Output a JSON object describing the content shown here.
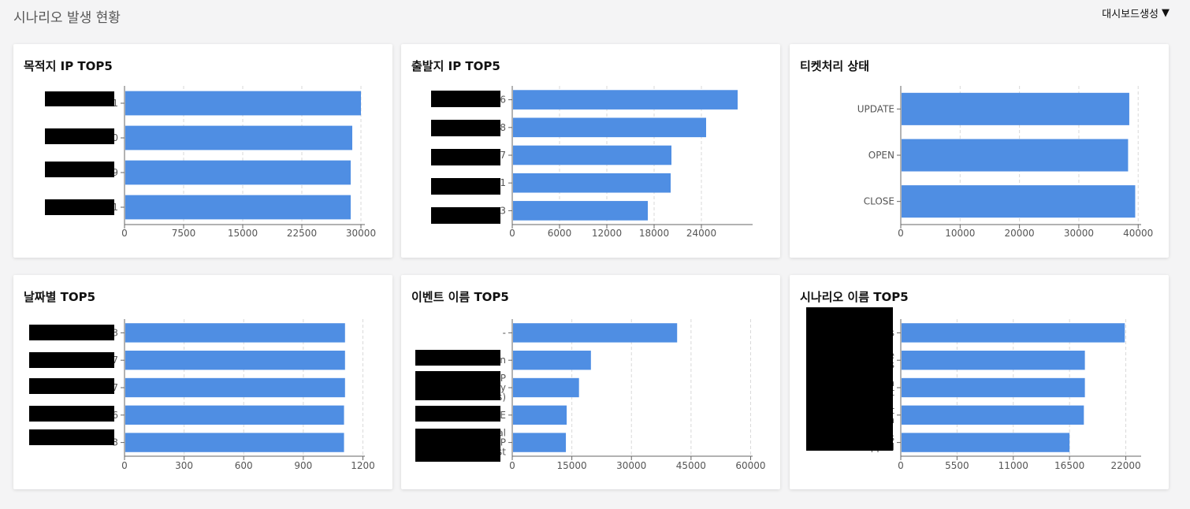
{
  "header": {
    "title": "시나리오 발생 현황",
    "dashboard_button": "대시보드생성",
    "dashboard_button_icon": "caret-down-icon"
  },
  "colors": {
    "bar": "#4f8ee3",
    "grid": "#d9d9d9",
    "axis": "#666666"
  },
  "chart_data": [
    {
      "id": "dest-ip",
      "title": "목적지 IP TOP5",
      "type": "bar",
      "orientation": "horizontal",
      "categories": [
        "1",
        "0",
        "9",
        "1"
      ],
      "values": [
        30000,
        28900,
        28700,
        28700
      ],
      "xlim": [
        0,
        30500
      ],
      "xticks": [
        0,
        7500,
        15000,
        22500,
        30000
      ],
      "grid": true
    },
    {
      "id": "src-ip",
      "title": "출발지 IP TOP5",
      "type": "bar",
      "orientation": "horizontal",
      "categories": [
        "6",
        "8",
        "7",
        "41",
        "3"
      ],
      "values": [
        28600,
        24600,
        20200,
        20100,
        17200
      ],
      "xlim": [
        0,
        30500
      ],
      "xticks": [
        0,
        6000,
        12000,
        18000,
        24000
      ],
      "grid": true
    },
    {
      "id": "ticket-status",
      "title": "티켓처리 상태",
      "type": "bar",
      "orientation": "horizontal",
      "categories": [
        "UPDATE",
        "OPEN",
        "CLOSE"
      ],
      "values": [
        38500,
        38300,
        39500
      ],
      "xlim": [
        0,
        40500
      ],
      "xticks": [
        0,
        10000,
        20000,
        30000,
        40000
      ],
      "grid": true
    },
    {
      "id": "by-date",
      "title": "날짜별 TOP5",
      "type": "bar",
      "orientation": "horizontal",
      "categories": [
        "3",
        "7",
        "7",
        "6",
        "3"
      ],
      "values": [
        1110,
        1110,
        1110,
        1105,
        1105
      ],
      "xlim": [
        0,
        1210
      ],
      "xticks": [
        0,
        300,
        600,
        900,
        1200
      ],
      "grid": true
    },
    {
      "id": "event-name",
      "title": "이벤트 이름 TOP5",
      "type": "bar",
      "orientation": "horizontal",
      "categories": [
        "-",
        "n",
        "P y s)",
        "E",
        "al P st"
      ],
      "values": [
        41500,
        19800,
        16800,
        13700,
        13500
      ],
      "xlim": [
        0,
        60500
      ],
      "xticks": [
        0,
        15000,
        30000,
        45000,
        60000
      ],
      "grid": true
    },
    {
      "id": "scenario-name",
      "title": "시나리오 이름 TOP5",
      "type": "bar",
      "orientation": "horizontal",
      "categories": [
        "s",
        "e s",
        "n t",
        "t n",
        "s Dropped"
      ],
      "values": [
        21900,
        18000,
        18000,
        17900,
        16500
      ],
      "xlim": [
        0,
        23500
      ],
      "xticks": [
        0,
        5500,
        11000,
        16500,
        22000
      ],
      "grid": true
    }
  ]
}
